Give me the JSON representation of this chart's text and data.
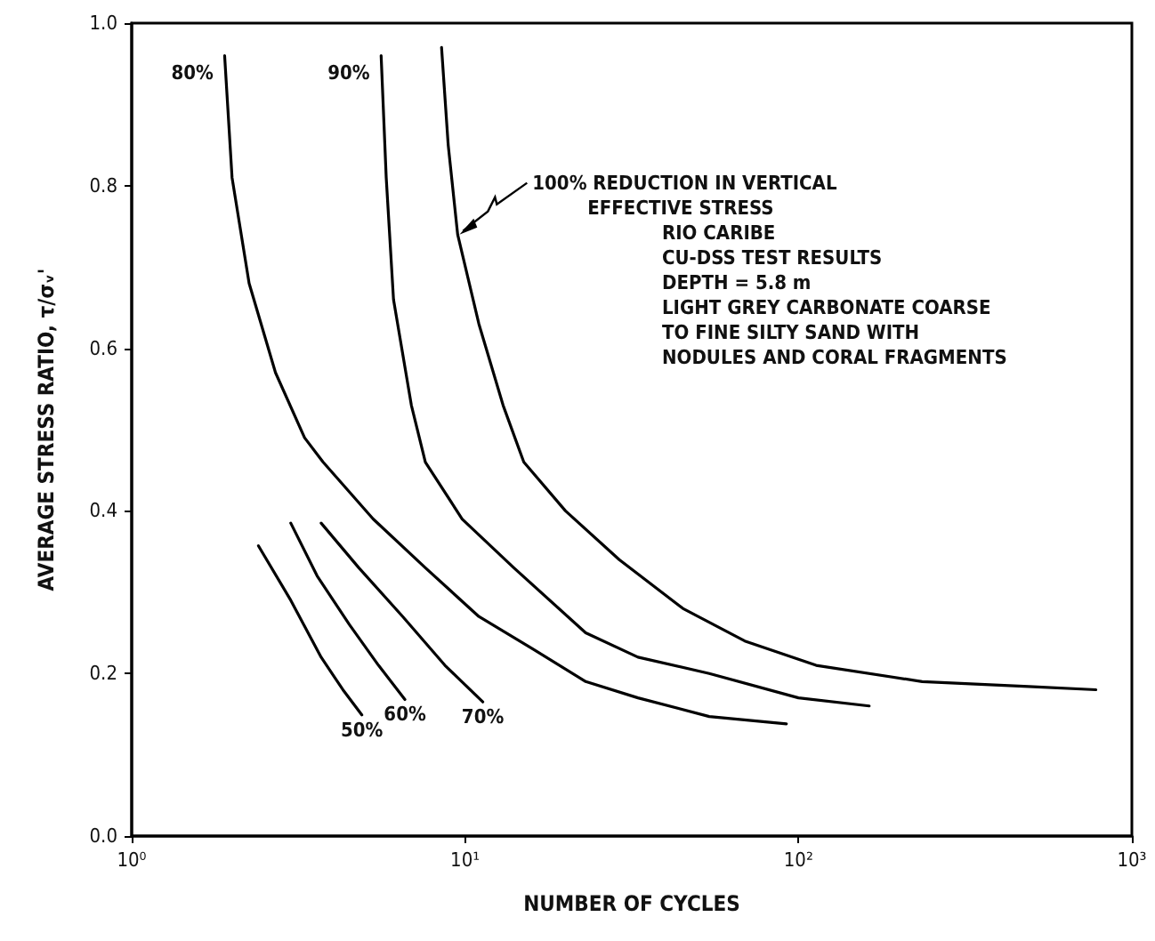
{
  "chart_data": {
    "type": "line",
    "xlabel": "NUMBER OF CYCLES",
    "ylabel": "AVERAGE STRESS RATIO, τ/σᵥ'",
    "log": "x",
    "xlim": [
      1,
      1000
    ],
    "xticks": [
      {
        "value": 1,
        "label": "10⁰"
      },
      {
        "value": 10,
        "label": "10¹"
      },
      {
        "value": 100,
        "label": "10²"
      },
      {
        "value": 1000,
        "label": "10³"
      }
    ],
    "ylim": [
      0,
      1
    ],
    "yticks": [
      {
        "value": 0,
        "label": "0.0"
      },
      0.2,
      0.4,
      0.6,
      0.8,
      {
        "value": 1,
        "label": "1.0"
      }
    ],
    "grid": false,
    "marker": "none",
    "line_style": "solid",
    "series": [
      {
        "name": "50%",
        "color": "#000000",
        "x": [
          2.4,
          3.0,
          3.7,
          4.3,
          4.9
        ],
        "values": [
          0.357,
          0.29,
          0.22,
          0.18,
          0.149
        ]
      },
      {
        "name": "60%",
        "color": "#000000",
        "x": [
          3.0,
          3.6,
          4.5,
          5.5,
          6.6
        ],
        "values": [
          0.385,
          0.32,
          0.26,
          0.21,
          0.168
        ]
      },
      {
        "name": "70%",
        "color": "#000000",
        "x": [
          3.7,
          4.8,
          6.5,
          8.7,
          11.3
        ],
        "values": [
          0.385,
          0.33,
          0.27,
          0.21,
          0.165
        ]
      },
      {
        "name": "80%",
        "color": "#000000",
        "x": [
          1.9,
          2.0,
          2.25,
          2.7,
          3.3,
          3.75,
          5.3,
          7.6,
          11,
          16,
          23,
          33,
          54,
          92
        ],
        "values": [
          0.96,
          0.81,
          0.68,
          0.57,
          0.49,
          0.46,
          0.39,
          0.33,
          0.27,
          0.23,
          0.19,
          0.17,
          0.147,
          0.138
        ]
      },
      {
        "name": "90%",
        "color": "#000000",
        "x": [
          5.6,
          5.8,
          6.1,
          6.9,
          7.6,
          9.8,
          14,
          23,
          33,
          54,
          100,
          163
        ],
        "values": [
          0.96,
          0.81,
          0.66,
          0.53,
          0.46,
          0.39,
          0.33,
          0.25,
          0.22,
          0.2,
          0.17,
          0.16
        ]
      },
      {
        "color": "#000000",
        "x": [
          8.5,
          8.9,
          9.5,
          11,
          13,
          15,
          20,
          29,
          45,
          69,
          113,
          235,
          490,
          780
        ],
        "values": [
          0.97,
          0.85,
          0.74,
          0.63,
          0.53,
          0.46,
          0.4,
          0.34,
          0.28,
          0.24,
          0.21,
          0.19,
          0.184,
          0.18
        ]
      }
    ],
    "annotations": [
      {
        "text": "100% REDUCTION IN VERTICAL\n         EFFECTIVE STRESS",
        "x": 9.5,
        "y": 0.74
      },
      "RIO CARIBE\nCU-DSS TEST RESULTS\nDEPTH = 5.8 m\nLIGHT GREY CARBONATE COARSE\nTO FINE SILTY SAND WITH\nNODULES AND CORAL FRAGMENTS"
    ]
  }
}
